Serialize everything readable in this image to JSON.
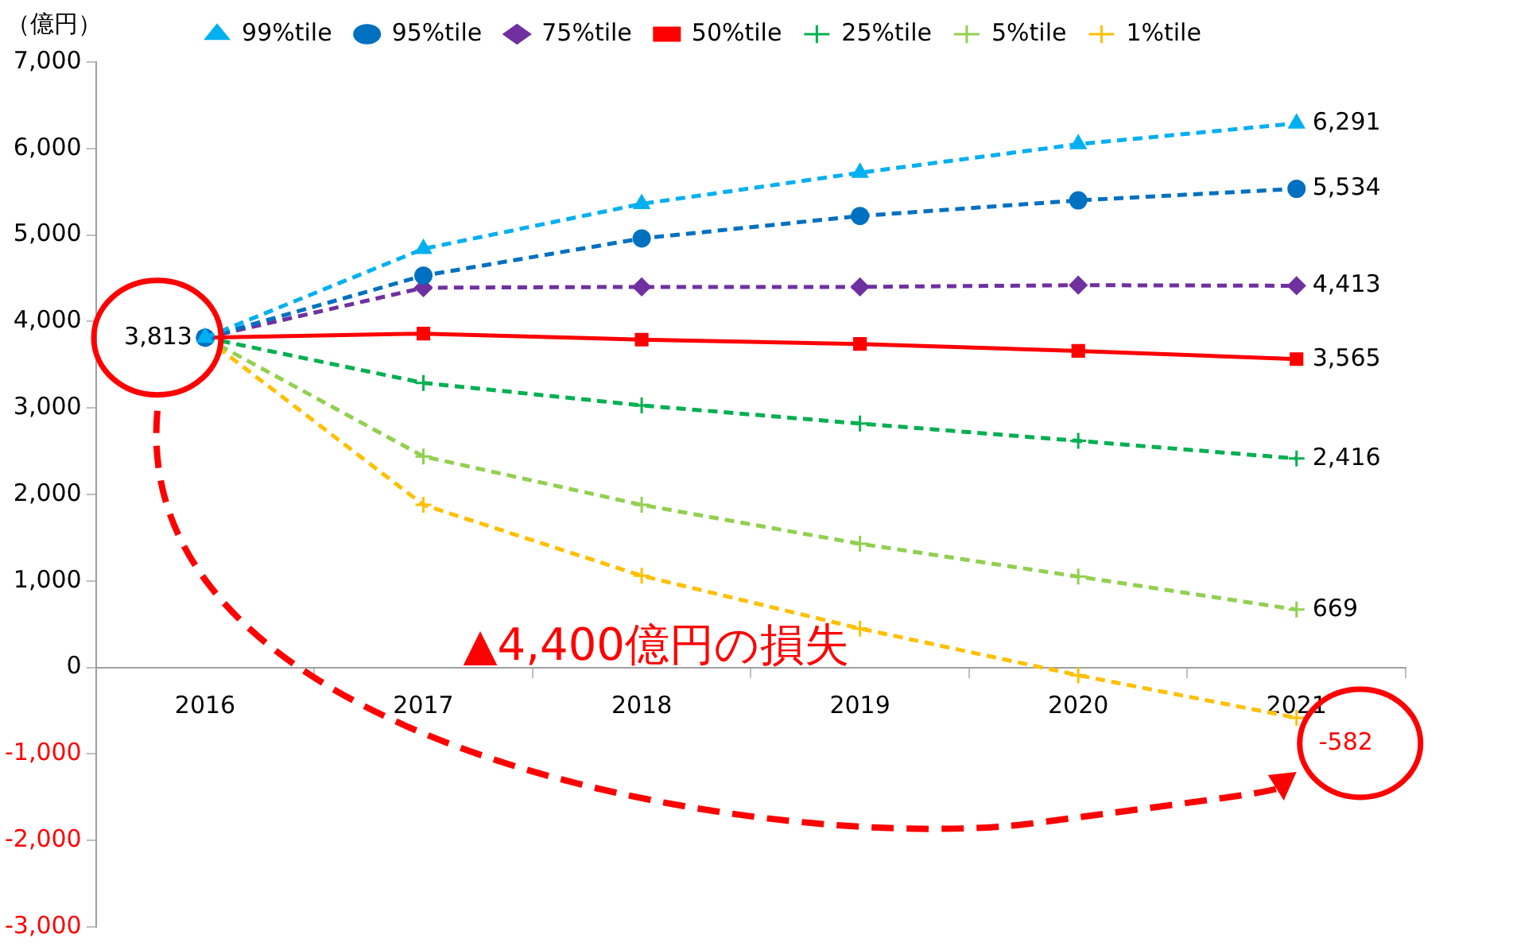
{
  "chart_data": {
    "type": "line",
    "ylabel": "（億円）",
    "categories": [
      "2016",
      "2017",
      "2018",
      "2019",
      "2020",
      "2021"
    ],
    "series": [
      {
        "name": "99%tile",
        "color": "#00b0f0",
        "marker": "triangle",
        "line_style": "dashed",
        "values": [
          3813,
          4840,
          5360,
          5720,
          6050,
          6291
        ],
        "value_labels": [
          null,
          null,
          null,
          null,
          null,
          "6,291"
        ]
      },
      {
        "name": "95%tile",
        "color": "#0070c0",
        "marker": "circle",
        "line_style": "dashed",
        "values": [
          3813,
          4530,
          4960,
          5220,
          5400,
          5534
        ],
        "value_labels": [
          null,
          null,
          null,
          null,
          null,
          "5,534"
        ]
      },
      {
        "name": "75%tile",
        "color": "#7030a0",
        "marker": "diamond",
        "line_style": "dashed",
        "values": [
          3813,
          4390,
          4400,
          4400,
          4420,
          4413
        ],
        "value_labels": [
          null,
          null,
          null,
          null,
          null,
          "4,413"
        ]
      },
      {
        "name": "50%tile",
        "color": "#ff0000",
        "marker": "square",
        "line_style": "solid",
        "values": [
          3813,
          3860,
          3790,
          3740,
          3660,
          3565
        ],
        "value_labels": [
          "3,813",
          null,
          null,
          null,
          null,
          "3,565"
        ]
      },
      {
        "name": "25%tile",
        "color": "#00b050",
        "marker": "cross",
        "line_style": "dashed",
        "values": [
          3813,
          3290,
          3030,
          2820,
          2620,
          2416
        ],
        "value_labels": [
          null,
          null,
          null,
          null,
          null,
          "2,416"
        ]
      },
      {
        "name": "5%tile",
        "color": "#92d050",
        "marker": "cross",
        "line_style": "dashed",
        "values": [
          3813,
          2440,
          1880,
          1430,
          1050,
          669
        ],
        "value_labels": [
          null,
          null,
          null,
          null,
          null,
          "669"
        ]
      },
      {
        "name": "1%tile",
        "color": "#ffc000",
        "marker": "cross",
        "line_style": "dashed",
        "values": [
          3813,
          1880,
          1060,
          450,
          -90,
          -582
        ],
        "value_labels": [
          null,
          null,
          null,
          null,
          null,
          "-582"
        ]
      }
    ],
    "ylim": [
      -3000,
      7000
    ],
    "yticks": [
      {
        "value": -3000,
        "label": "-3,000"
      },
      {
        "value": -2000,
        "label": "-2,000"
      },
      {
        "value": -1000,
        "label": "-1,000"
      },
      0,
      {
        "value": 1000,
        "label": "1,000"
      },
      {
        "value": 2000,
        "label": "2,000"
      },
      {
        "value": 3000,
        "label": "3,000"
      },
      {
        "value": 4000,
        "label": "4,000"
      },
      {
        "value": 5000,
        "label": "5,000"
      },
      {
        "value": 6000,
        "label": "6,000"
      },
      {
        "value": 7000,
        "label": "7,000"
      }
    ],
    "grid": false,
    "legend": "top",
    "annotations": [
      "▲4,400億円の損失"
    ]
  }
}
